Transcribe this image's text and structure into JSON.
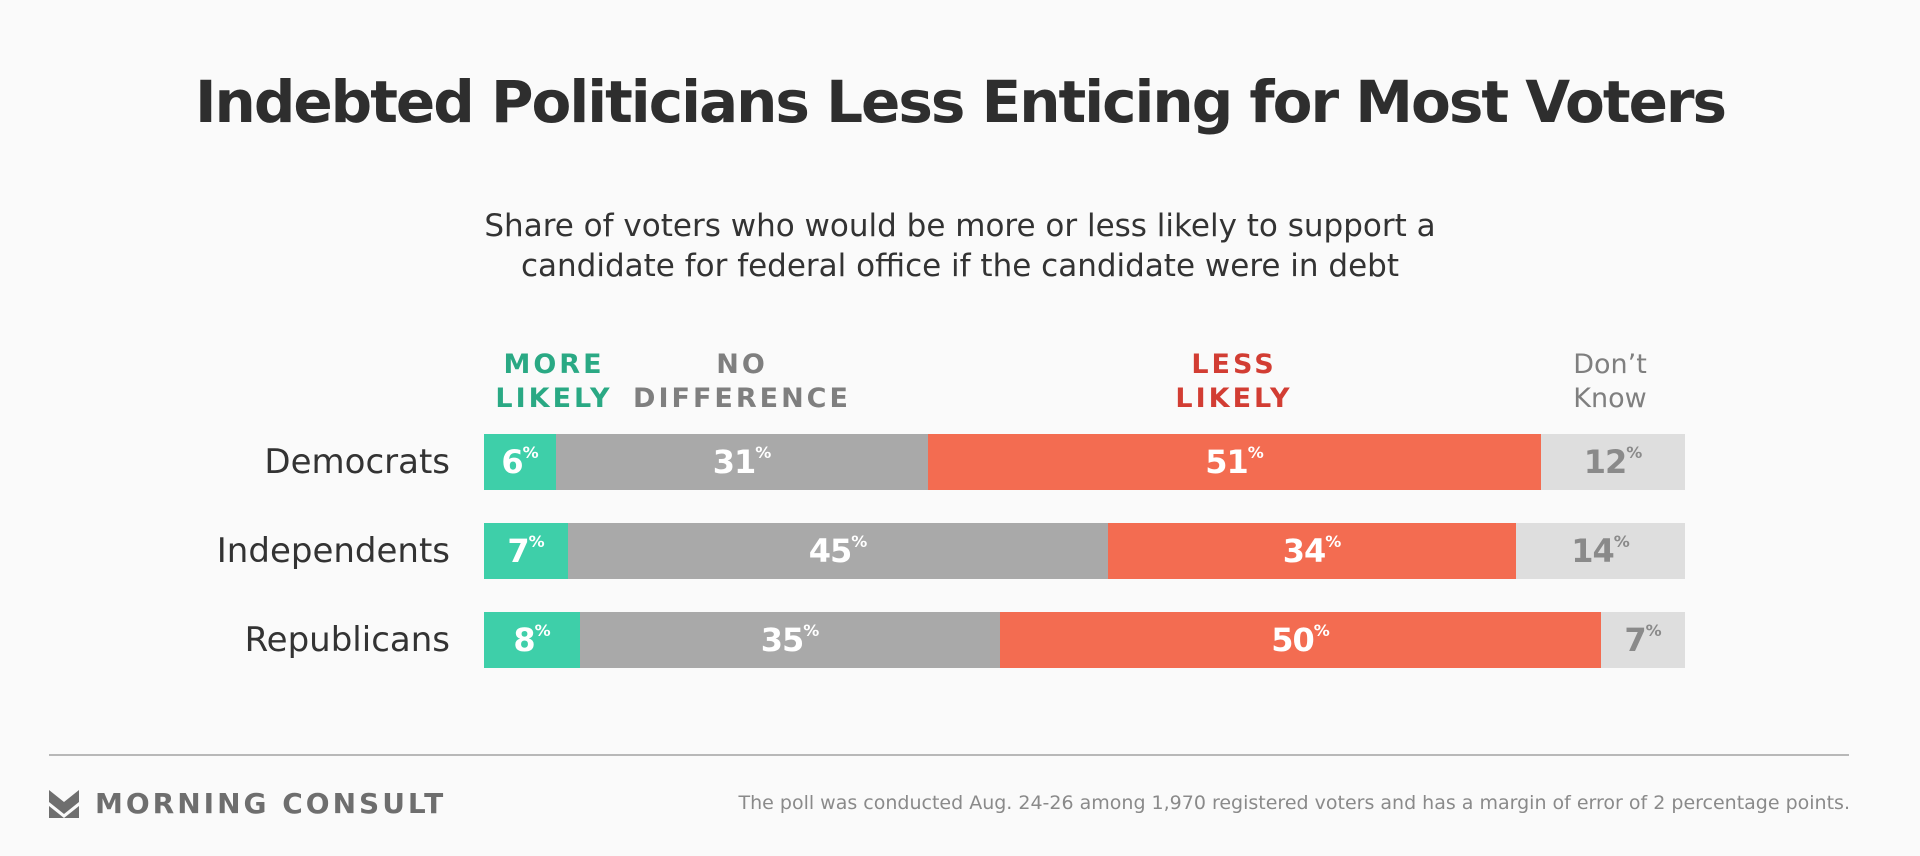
{
  "chart_data": {
    "type": "bar",
    "orientation": "horizontal",
    "stacked": true,
    "title": "Indebted Politicians Less Enticing for Most Voters",
    "subtitle": "Share of voters who would be more or less likely to support a candidate for federal office if the candidate were in debt",
    "categories": [
      "Democrats",
      "Independents",
      "Republicans"
    ],
    "series": [
      {
        "name": "MORE LIKELY",
        "values": [
          6,
          7,
          8
        ],
        "color": "#3ecfa9",
        "label_color": "#ffffff"
      },
      {
        "name": "NO DIFFERENCE",
        "values": [
          31,
          45,
          35
        ],
        "color": "#a9a9a9",
        "label_color": "#ffffff"
      },
      {
        "name": "LESS LIKELY",
        "values": [
          51,
          34,
          50
        ],
        "color": "#f36c51",
        "label_color": "#ffffff"
      },
      {
        "name": "Don’t Know",
        "values": [
          12,
          14,
          7
        ],
        "color": "#dedede",
        "label_color": "#8a8a8a"
      }
    ],
    "value_suffix": "%",
    "xlim": [
      0,
      100
    ],
    "legend": {
      "more": {
        "text": "MORE\nLIKELY",
        "color": "#2aa984"
      },
      "no_diff": {
        "text": "NO\nDIFFERENCE",
        "color": "#7f7f7f"
      },
      "less": {
        "text": "LESS\nLIKELY",
        "color": "#d23d33"
      },
      "dont_know": {
        "text": "Don’t\nKnow",
        "color": "#7f7f7f"
      }
    }
  },
  "footer": {
    "logo_text": "MORNING CONSULT",
    "note": "The poll was conducted Aug. 24-26 among 1,970 registered voters and has a margin of error of 2 percentage points."
  }
}
